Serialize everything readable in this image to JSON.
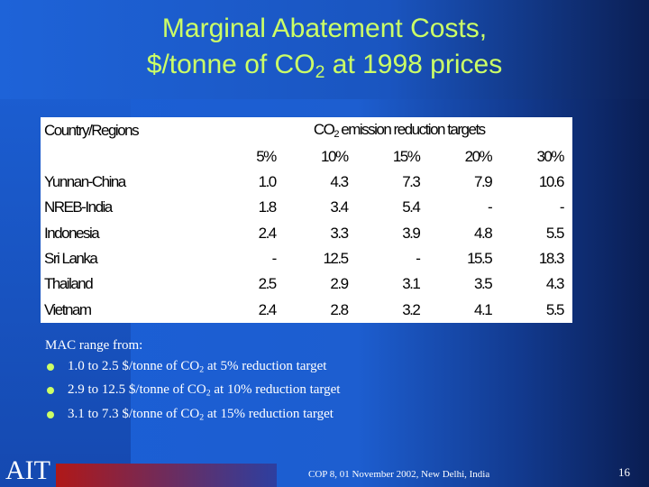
{
  "title": {
    "line1": "Marginal Abatement Costs,",
    "line2": [
      "$/tonne of CO",
      "2",
      " at 1998 prices"
    ]
  },
  "table": {
    "header": {
      "region": "Country/Regions",
      "targets": [
        "CO",
        "2",
        " emission reduction targets"
      ]
    },
    "columns": [
      "5%",
      "10%",
      "15%",
      "20%",
      "30%"
    ],
    "rows": [
      [
        "Yunnan-China",
        "1.0",
        "4.3",
        "7.3",
        "7.9",
        "10.6"
      ],
      [
        "NREB-India",
        "1.8",
        "3.4",
        "5.4",
        "-",
        "-"
      ],
      [
        "Indonesia",
        "2.4",
        "3.3",
        "3.9",
        "4.8",
        "5.5"
      ],
      [
        "Sri Lanka",
        "-",
        "12.5",
        "-",
        "15.5",
        "18.3"
      ],
      [
        "Thailand",
        "2.5",
        "2.9",
        "3.1",
        "3.5",
        "4.3"
      ],
      [
        "Vietnam",
        "2.4",
        "2.8",
        "3.2",
        "4.1",
        "5.5"
      ]
    ]
  },
  "notes": {
    "intro": "MAC range from:",
    "bullets": [
      [
        "1.0 to 2.5 $/tonne of CO",
        "2",
        " at 5% reduction target"
      ],
      [
        "2.9 to 12.5 $/tonne of CO",
        "2",
        " at 10% reduction target"
      ],
      [
        "3.1 to 7.3 $/tonne of CO",
        "2",
        " at 15% reduction target"
      ]
    ]
  },
  "footer": {
    "logo": "AIT",
    "event": "COP 8, 01 November 2002, New Delhi, India",
    "page": "16"
  }
}
